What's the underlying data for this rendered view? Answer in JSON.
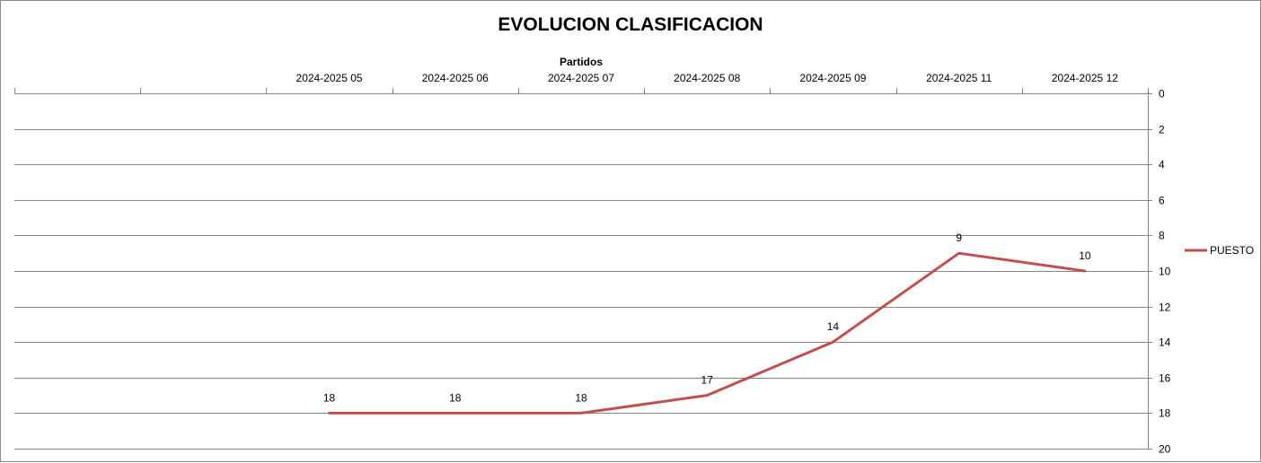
{
  "chart_data": {
    "type": "line",
    "title": "EVOLUCION CLASIFICACION",
    "xlabel": "Partidos",
    "ylabel": "",
    "x_axis_position": "top",
    "y_axis_position": "right",
    "y_reversed": true,
    "ylim": [
      0,
      20
    ],
    "y_major_unit": 2,
    "grid": true,
    "legend_position": "right",
    "categories": [
      "",
      "",
      "2024-2025 05",
      "2024-2025 06",
      "2024-2025 07",
      "2024-2025 08",
      "2024-2025 09",
      "2024-2025 11",
      "2024-2025 12"
    ],
    "series": [
      {
        "name": "PUESTO",
        "color": "#c0504d",
        "values": [
          null,
          null,
          18,
          18,
          18,
          17,
          14,
          9,
          10
        ]
      }
    ],
    "data_labels": true
  }
}
